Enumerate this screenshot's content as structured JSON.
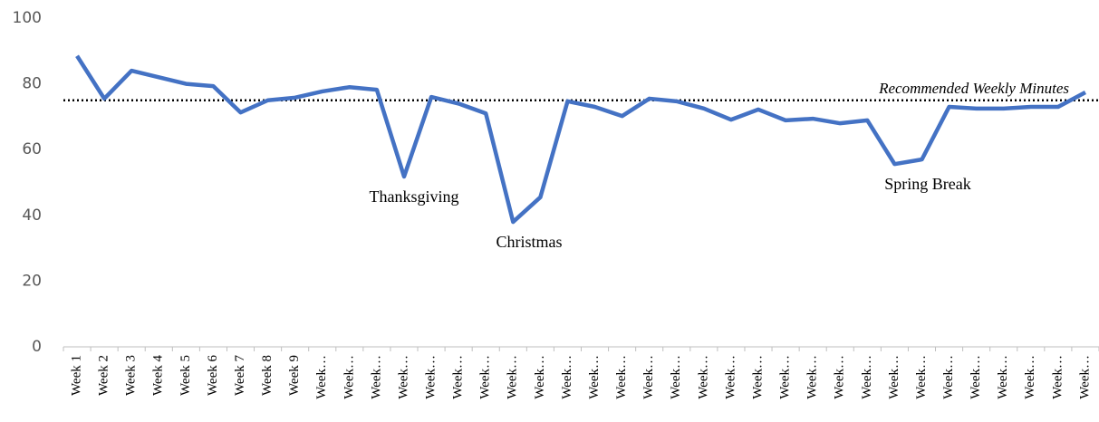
{
  "chart_data": {
    "type": "line",
    "categories": [
      "Week 1",
      "Week 2",
      "Week 3",
      "Week 4",
      "Week 5",
      "Week 6",
      "Week 7",
      "Week 8",
      "Week 9",
      "Week…",
      "Week…",
      "Week…",
      "Week…",
      "Week…",
      "Week…",
      "Week…",
      "Week…",
      "Week…",
      "Week…",
      "Week…",
      "Week…",
      "Week…",
      "Week…",
      "Week…",
      "Week…",
      "Week…",
      "Week…",
      "Week…",
      "Week…",
      "Week…",
      "Week…",
      "Week…",
      "Week…",
      "Week…",
      "Week…",
      "Week…",
      "Week…",
      "Week…"
    ],
    "series": [
      {
        "name": null,
        "color": "#4472c4",
        "values": [
          88.5,
          75.5,
          84,
          82,
          80,
          79.3,
          71.3,
          75,
          75.8,
          77.7,
          79,
          78.2,
          51.8,
          76,
          74,
          71,
          38,
          45.5,
          74.7,
          73,
          70.2,
          75.5,
          74.7,
          72.5,
          69.1,
          72.2,
          68.9,
          69.4,
          68,
          68.9,
          55.6,
          57,
          73,
          72.5,
          72.5,
          73,
          73,
          77.4
        ]
      }
    ],
    "ylim": [
      0,
      100
    ],
    "yticks": [
      0,
      20,
      40,
      60,
      80,
      100
    ],
    "grid": false,
    "reference_line": {
      "value": 75,
      "label": "Recommended Weekly Minutes",
      "color": "#000000"
    },
    "annotations": [
      "Thanksgiving",
      "Christmas",
      "Spring Break"
    ]
  }
}
